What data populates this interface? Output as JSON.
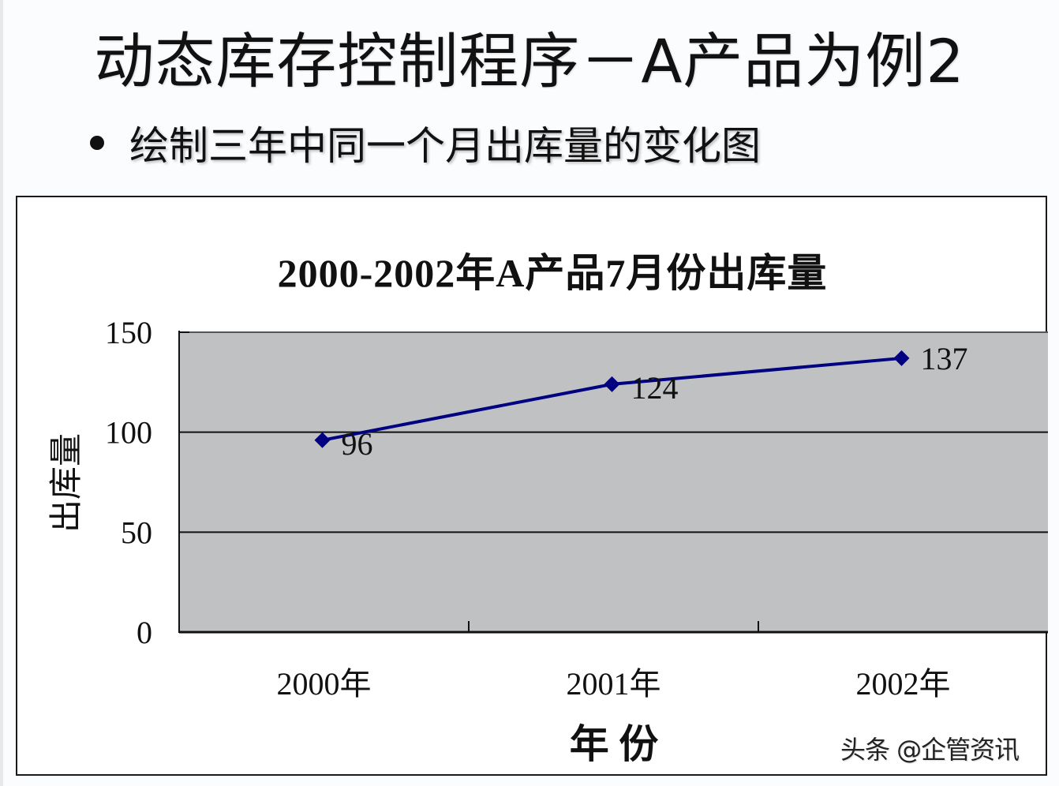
{
  "slide": {
    "title": "动态库存控制程序－A产品为例2",
    "bullet": "绘制三年中同一个月出库量的变化图"
  },
  "watermark": "头条 @企管资讯",
  "colors": {
    "plot_background": "#c0c1c3",
    "series_line": "#000080",
    "gridline": "#000000"
  },
  "chart_data": {
    "type": "line",
    "title": "2000-2002年A产品7月份出库量",
    "xlabel": "年 份",
    "ylabel": "出库量",
    "categories": [
      "2000年",
      "2001年",
      "2002年"
    ],
    "series": [
      {
        "name": "出库量",
        "values": [
          96,
          124,
          137
        ],
        "marker": "diamond",
        "data_labels": [
          "96",
          "124",
          "137"
        ]
      }
    ],
    "ylim": [
      0,
      150
    ],
    "yticks": [
      "0",
      "50",
      "100",
      "150"
    ],
    "grid": true,
    "legend": "none"
  }
}
